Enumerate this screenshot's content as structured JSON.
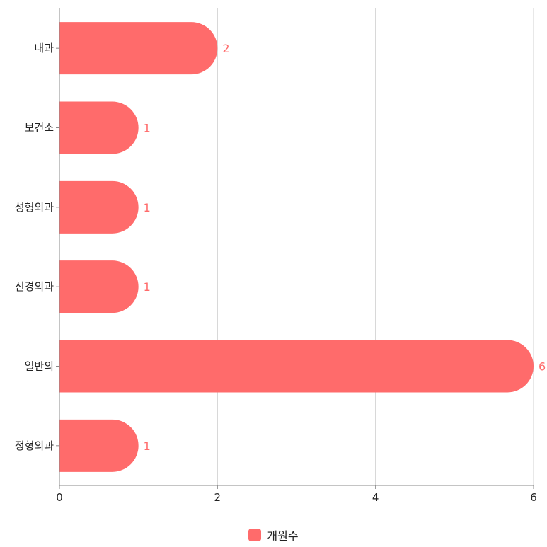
{
  "chart_data": {
    "type": "bar",
    "orientation": "horizontal",
    "categories": [
      "내과",
      "보건소",
      "성형외과",
      "신경외과",
      "일반의",
      "정형외과"
    ],
    "series": [
      {
        "name": "개원수",
        "values": [
          2,
          1,
          1,
          1,
          6,
          1
        ]
      }
    ],
    "xlim": [
      0,
      6
    ],
    "xticks": [
      0,
      2,
      4,
      6
    ],
    "grid": true,
    "legend_position": "bottom",
    "data_labels": true,
    "colors": {
      "bar": "#ff6b6b",
      "grid": "#d0d0d0",
      "axis": "#888888",
      "label": "#ff6b6b"
    }
  }
}
